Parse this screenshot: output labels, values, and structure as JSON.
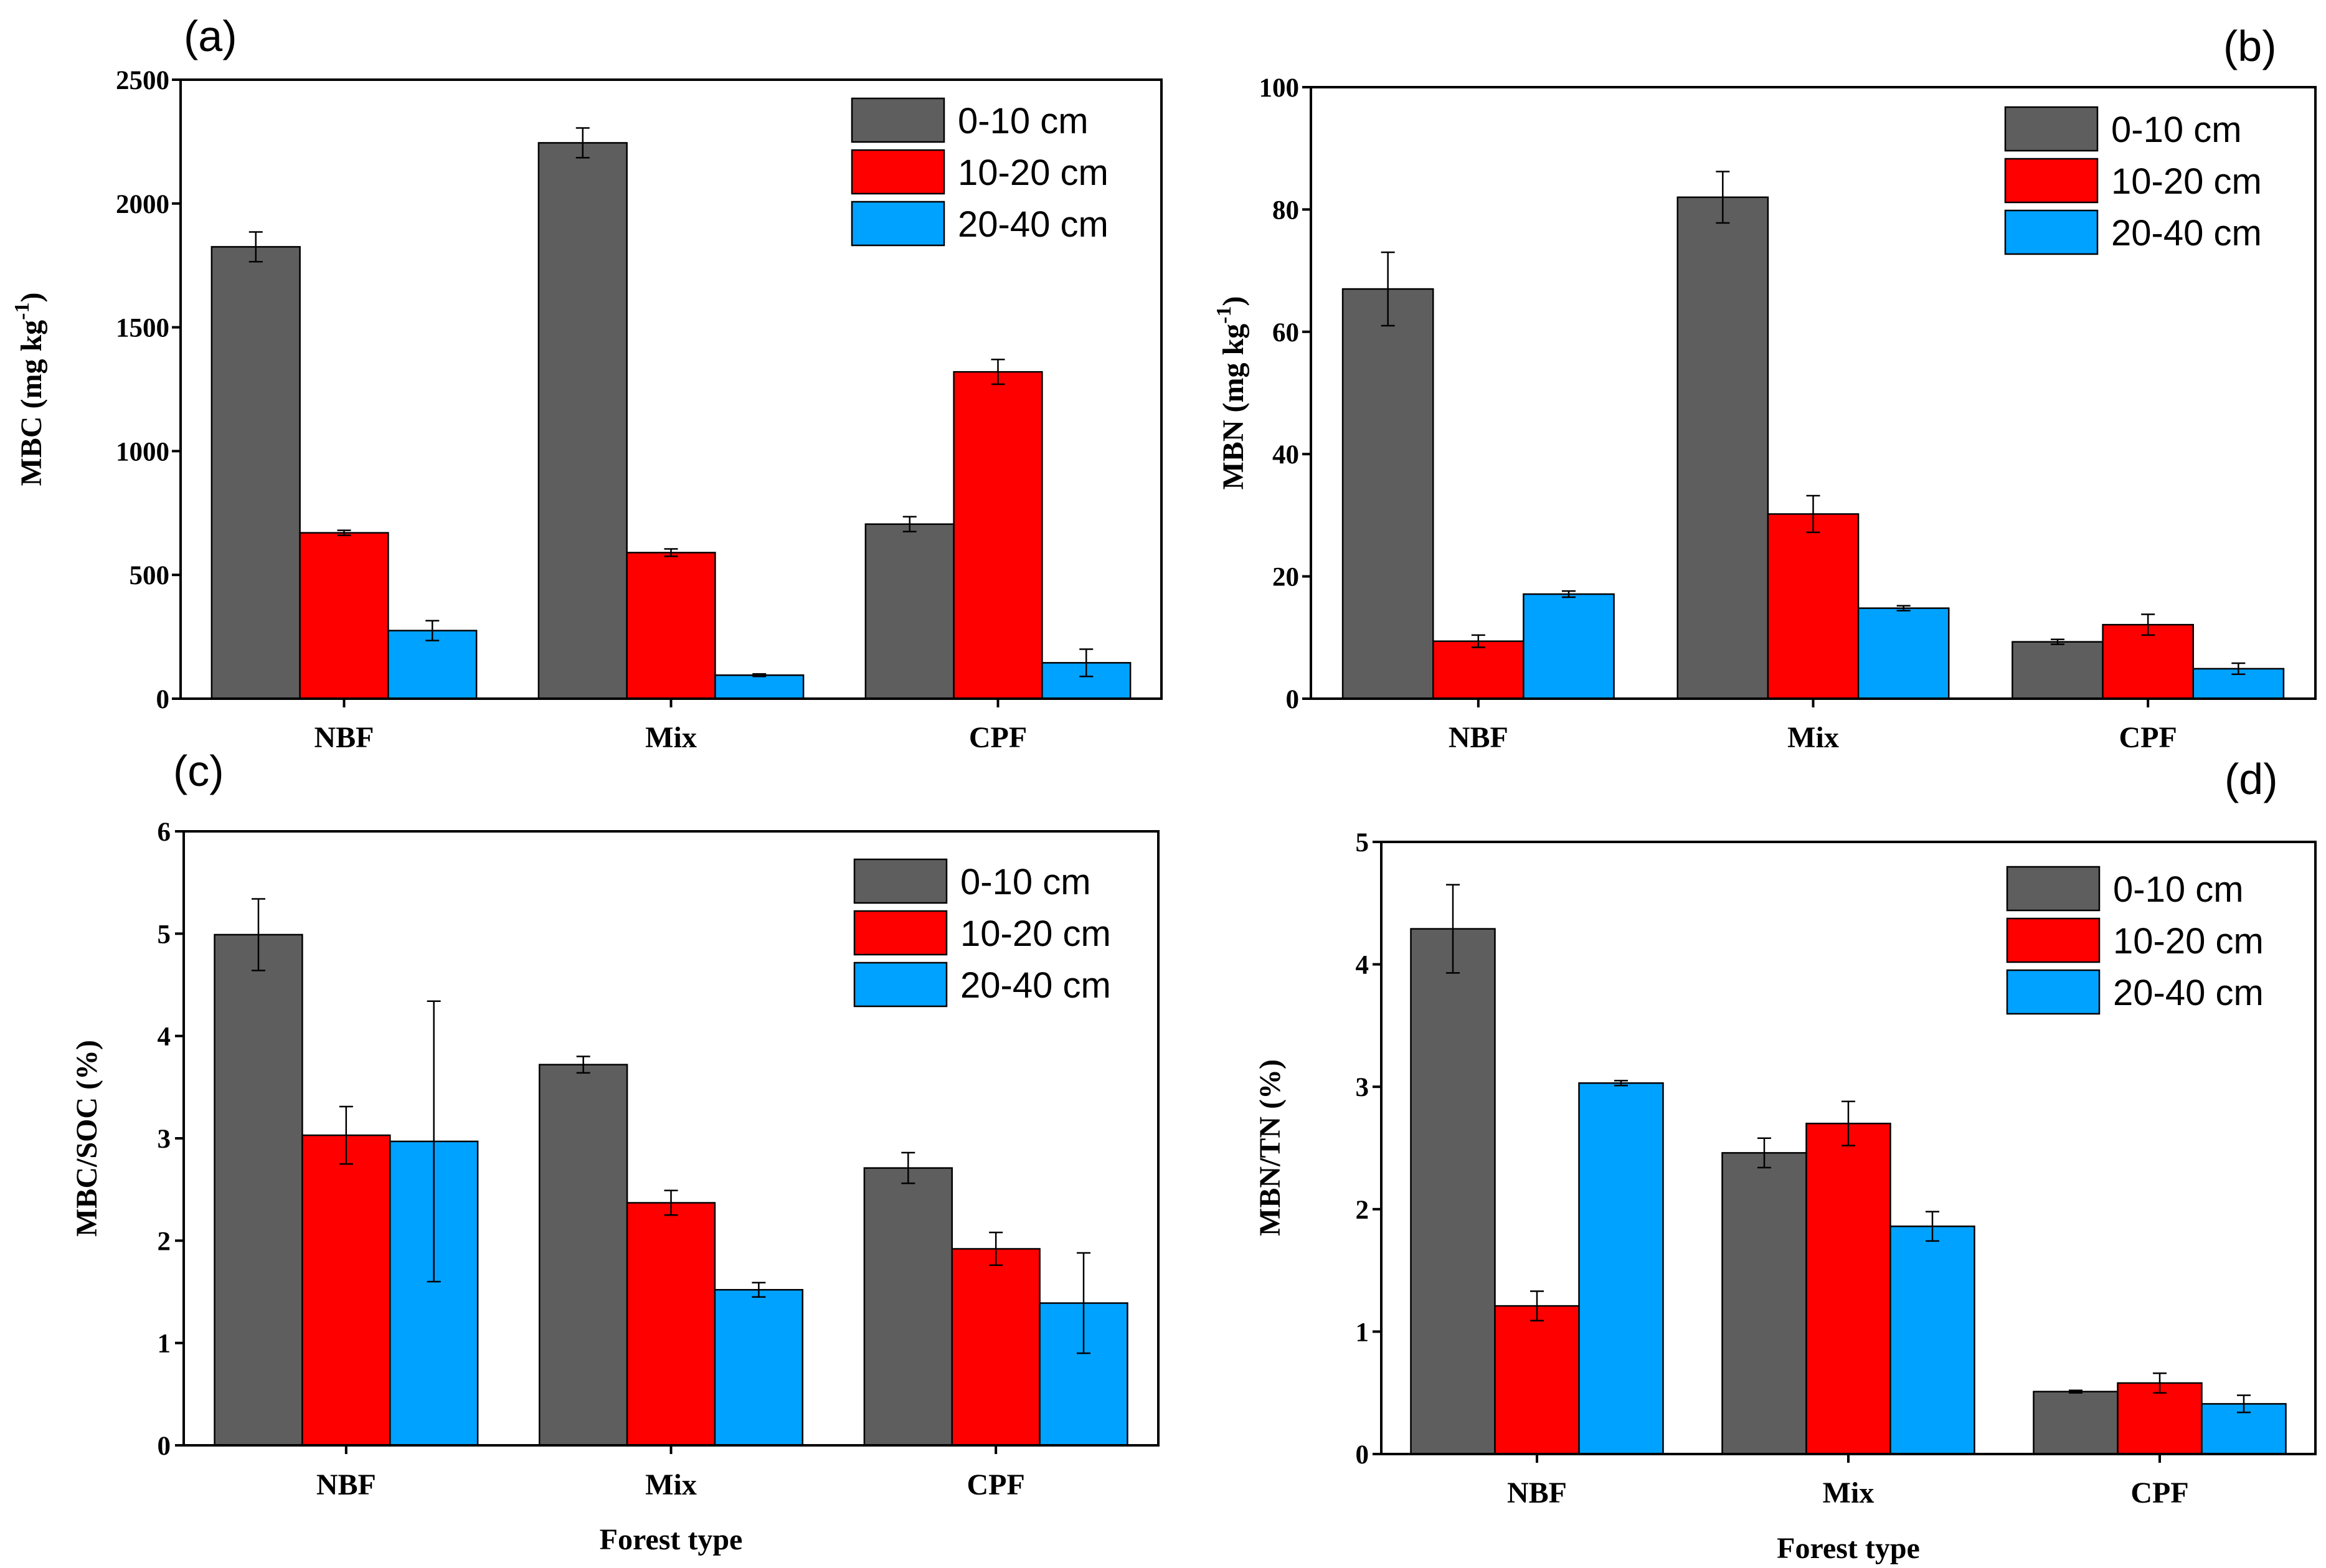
{
  "colors": {
    "s0": "#5e5e5e",
    "s1": "#ff0000",
    "s2": "#00a2ff"
  },
  "categories": [
    "NBF",
    "Mix",
    "CPF"
  ],
  "legend": [
    "0-10 cm",
    "10-20 cm",
    "20-40 cm"
  ],
  "chart_data": [
    {
      "id": "a",
      "type": "bar",
      "panel_label": "(a)",
      "title": "",
      "ylabel": "MBC (mg kg",
      "ylabel_sup": "-1",
      "ylabel_end": ")",
      "xlabel": "",
      "ylim": [
        0,
        2500
      ],
      "yticks": [
        0,
        500,
        1000,
        1500,
        2000,
        2500
      ],
      "legend_position": "top-right",
      "categories": [
        "NBF",
        "Mix",
        "CPF"
      ],
      "series": [
        {
          "name": "0-10 cm",
          "values": [
            1825,
            2245,
            705
          ],
          "errors": [
            60,
            60,
            30
          ]
        },
        {
          "name": "10-20 cm",
          "values": [
            670,
            590,
            1320
          ],
          "errors": [
            10,
            15,
            50
          ]
        },
        {
          "name": "20-40 cm",
          "values": [
            275,
            95,
            145
          ],
          "errors": [
            40,
            5,
            55
          ]
        }
      ]
    },
    {
      "id": "b",
      "type": "bar",
      "panel_label": "(b)",
      "title": "",
      "ylabel": "MBN (mg kg",
      "ylabel_sup": "-1",
      "ylabel_end": ")",
      "xlabel": "",
      "ylim": [
        0,
        100
      ],
      "yticks": [
        0,
        20,
        40,
        60,
        80,
        100
      ],
      "legend_position": "top-right",
      "categories": [
        "NBF",
        "Mix",
        "CPF"
      ],
      "series": [
        {
          "name": "0-10 cm",
          "values": [
            67,
            82,
            9.3
          ],
          "errors": [
            6,
            4.2,
            0.4
          ]
        },
        {
          "name": "10-20 cm",
          "values": [
            9.4,
            30.2,
            12.1
          ],
          "errors": [
            1,
            3,
            1.7
          ]
        },
        {
          "name": "20-40 cm",
          "values": [
            17.1,
            14.8,
            4.9
          ],
          "errors": [
            0.5,
            0.4,
            0.9
          ]
        }
      ]
    },
    {
      "id": "c",
      "type": "bar",
      "panel_label": "(c)",
      "title": "",
      "ylabel": "MBC/SOC (%)",
      "ylabel_sup": "",
      "ylabel_end": "",
      "xlabel": "Forest type",
      "ylim": [
        0,
        6
      ],
      "yticks": [
        0,
        1,
        2,
        3,
        4,
        5,
        6
      ],
      "legend_position": "top-right",
      "categories": [
        "NBF",
        "Mix",
        "CPF"
      ],
      "series": [
        {
          "name": "0-10 cm",
          "values": [
            4.99,
            3.72,
            2.71
          ],
          "errors": [
            0.35,
            0.08,
            0.15
          ]
        },
        {
          "name": "10-20 cm",
          "values": [
            3.03,
            2.37,
            1.92
          ],
          "errors": [
            0.28,
            0.12,
            0.16
          ]
        },
        {
          "name": "20-40 cm",
          "values": [
            2.97,
            1.52,
            1.39
          ],
          "errors": [
            1.37,
            0.07,
            0.49
          ]
        }
      ]
    },
    {
      "id": "d",
      "type": "bar",
      "panel_label": "(d)",
      "title": "",
      "ylabel": "MBN/TN (%)",
      "ylabel_sup": "",
      "ylabel_end": "",
      "xlabel": "Forest type",
      "ylim": [
        0,
        5
      ],
      "yticks": [
        0,
        1,
        2,
        3,
        4,
        5
      ],
      "legend_position": "top-right",
      "categories": [
        "NBF",
        "Mix",
        "CPF"
      ],
      "series": [
        {
          "name": "0-10 cm",
          "values": [
            4.29,
            2.46,
            0.51
          ],
          "errors": [
            0.36,
            0.12,
            0.01
          ]
        },
        {
          "name": "10-20 cm",
          "values": [
            1.21,
            2.7,
            0.58
          ],
          "errors": [
            0.12,
            0.18,
            0.08
          ]
        },
        {
          "name": "20-40 cm",
          "values": [
            3.03,
            1.86,
            0.41
          ],
          "errors": [
            0.02,
            0.12,
            0.07
          ]
        }
      ]
    }
  ]
}
